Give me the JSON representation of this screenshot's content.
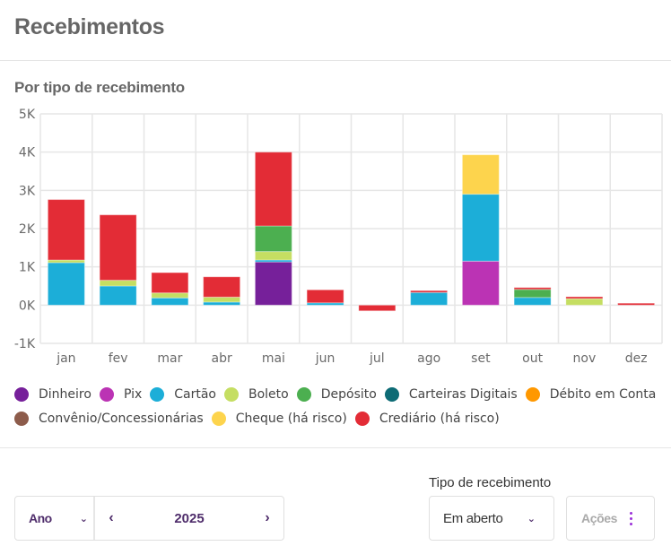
{
  "header": {
    "title": "Recebimentos"
  },
  "chart_section": {
    "title": "Por tipo de recebimento"
  },
  "chart_data": {
    "type": "bar",
    "stacked": true,
    "title": "Por tipo de recebimento",
    "xlabel": "",
    "ylabel": "",
    "ylim": [
      -1000,
      5000
    ],
    "yticks": [
      -1000,
      0,
      1000,
      2000,
      3000,
      4000,
      5000
    ],
    "ytick_labels": [
      "-1K",
      "0K",
      "1K",
      "2K",
      "3K",
      "4K",
      "5K"
    ],
    "grid": true,
    "legend_position": "bottom",
    "categories": [
      "jan",
      "fev",
      "mar",
      "abr",
      "mai",
      "jun",
      "jul",
      "ago",
      "set",
      "out",
      "nov",
      "dez"
    ],
    "series": [
      {
        "name": "Dinheiro",
        "color": "#76209a",
        "values": [
          0,
          0,
          0,
          0,
          1130,
          0,
          0,
          0,
          0,
          0,
          0,
          0
        ]
      },
      {
        "name": "Pix",
        "color": "#bb33b4",
        "values": [
          0,
          0,
          0,
          0,
          0,
          0,
          0,
          0,
          1150,
          0,
          0,
          0
        ]
      },
      {
        "name": "Cartão",
        "color": "#1caed8",
        "values": [
          1110,
          500,
          190,
          80,
          50,
          60,
          0,
          330,
          1750,
          200,
          0,
          0
        ]
      },
      {
        "name": "Boleto",
        "color": "#c5de62",
        "values": [
          70,
          150,
          130,
          130,
          220,
          0,
          0,
          0,
          0,
          0,
          170,
          0
        ]
      },
      {
        "name": "Depósito",
        "color": "#4caf50",
        "values": [
          0,
          0,
          0,
          0,
          670,
          0,
          0,
          0,
          0,
          210,
          0,
          0
        ]
      },
      {
        "name": "Carteiras Digitais",
        "color": "#0d6b75",
        "values": [
          0,
          0,
          0,
          0,
          0,
          0,
          0,
          0,
          0,
          0,
          0,
          0
        ]
      },
      {
        "name": "Débito em Conta",
        "color": "#ff9800",
        "values": [
          0,
          0,
          0,
          0,
          0,
          0,
          0,
          0,
          0,
          0,
          0,
          0
        ]
      },
      {
        "name": "Convênio/Concessionárias",
        "color": "#8d5c4b",
        "values": [
          0,
          0,
          0,
          0,
          0,
          0,
          0,
          0,
          0,
          0,
          0,
          0
        ]
      },
      {
        "name": "Cheque (há risco)",
        "color": "#fdd44d",
        "values": [
          0,
          0,
          0,
          0,
          0,
          0,
          0,
          0,
          1030,
          0,
          0,
          0
        ]
      },
      {
        "name": "Crediário (há risco)",
        "color": "#e32c36",
        "values": [
          1580,
          1710,
          530,
          530,
          1930,
          340,
          -150,
          50,
          0,
          50,
          50,
          50
        ]
      }
    ]
  },
  "legend_rows": [
    [
      "Dinheiro",
      "Pix",
      "Cartão",
      "Boleto",
      "Depósito",
      "Carteiras Digitais",
      "Débito em Conta"
    ],
    [
      "Convênio/Concessionárias",
      "Cheque (há risco)",
      "Crediário (há risco)"
    ]
  ],
  "filters": {
    "period_select": {
      "value": "Ano"
    },
    "year": "2025",
    "prev_icon": "chevron-left-icon",
    "next_icon": "chevron-right-icon",
    "tipo_label": "Tipo de recebimento",
    "tipo_select": {
      "value": "Em aberto"
    },
    "actions_label": "Ações"
  }
}
